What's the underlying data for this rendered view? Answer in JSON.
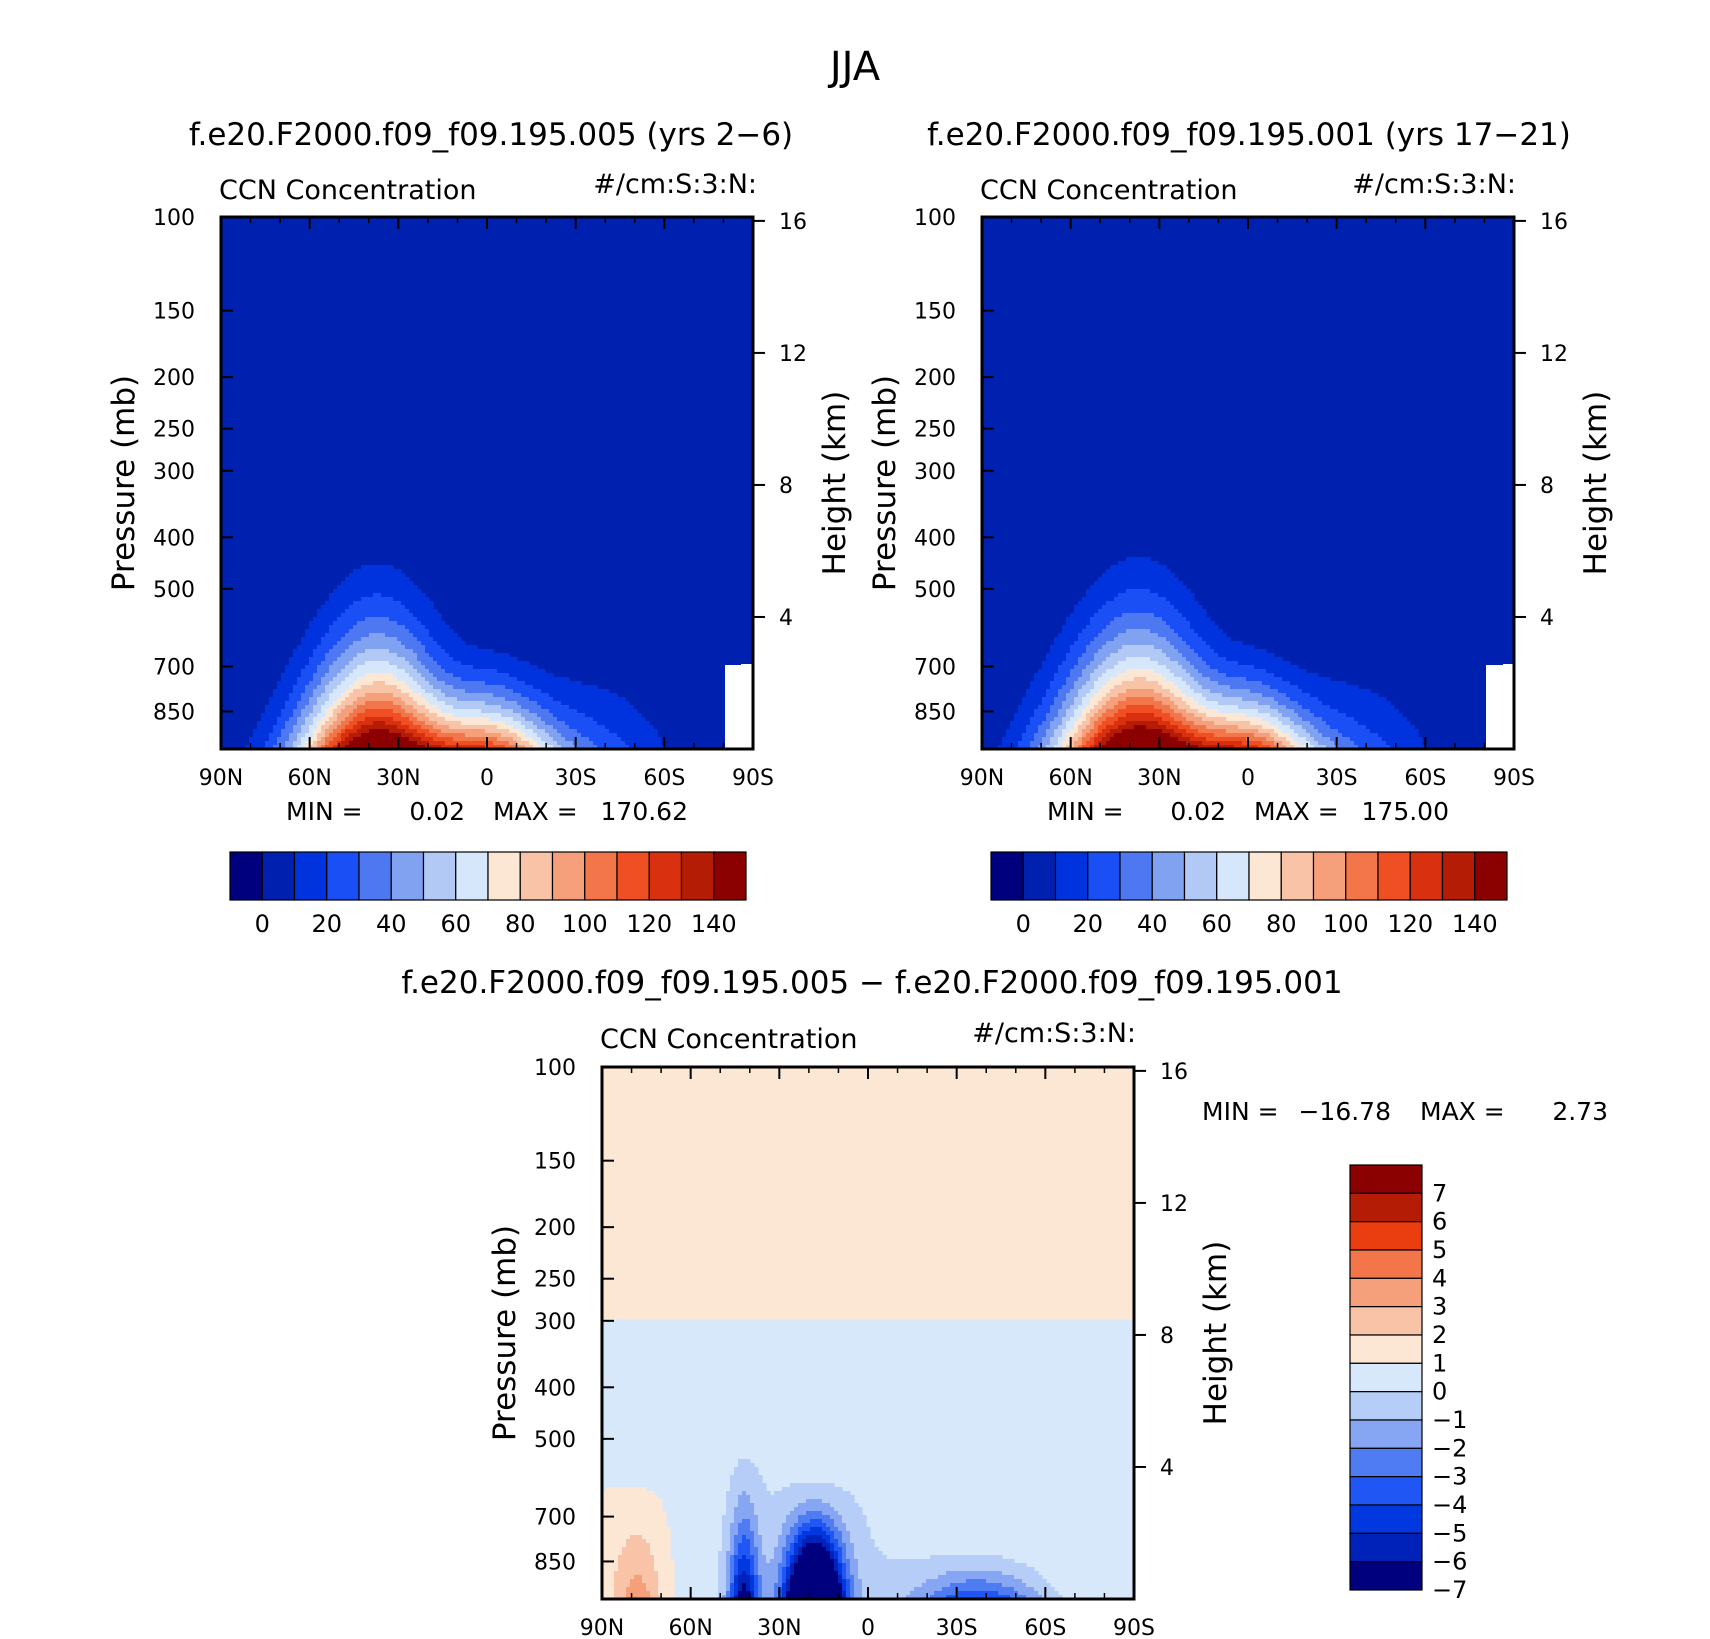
{
  "figure": {
    "title": "JJA"
  },
  "colors": {
    "abs": [
      "#00007f",
      "#0020b0",
      "#0033dd",
      "#1a4ff5",
      "#4d78f2",
      "#80a2f0",
      "#b3c9f5",
      "#d6e6fb",
      "#fce6d4",
      "#f9c3a8",
      "#f5a07a",
      "#f3764b",
      "#f04f24",
      "#d93010",
      "#b51c05",
      "#8b0000"
    ],
    "diff": [
      "#00007f",
      "#0022b8",
      "#0038e0",
      "#1f56f4",
      "#4f7cf2",
      "#86a6f3",
      "#b6cdf7",
      "#d7e8fb",
      "#fce6d4",
      "#f9c3a8",
      "#f5a07a",
      "#f3764b",
      "#ea3d10",
      "#b51c05",
      "#8b0000"
    ]
  },
  "chart_data": [
    {
      "type": "contour",
      "title": "f.e20.F2000.f09_f09.195.005 (yrs 2−6)",
      "variable": "CCN Concentration",
      "units": "#/cm:S:3:N:",
      "xlabel": "",
      "ylabel": "Pressure (mb)",
      "y2label": "Height (km)",
      "x_ticks": [
        "90N",
        "60N",
        "30N",
        "0",
        "30S",
        "60S",
        "90S"
      ],
      "y_ticks": [
        100,
        150,
        200,
        250,
        300,
        400,
        500,
        700,
        850
      ],
      "y_range": [
        100,
        1000
      ],
      "y2_ticks": [
        16,
        12,
        8,
        4
      ],
      "stats": {
        "min_label": "MIN =",
        "min": "0.02",
        "max_label": "MAX =",
        "max": "170.62"
      },
      "levels": [
        0,
        10,
        20,
        30,
        40,
        50,
        60,
        70,
        80,
        90,
        100,
        110,
        120,
        130,
        140
      ],
      "colorbar_labels": [
        "0",
        "20",
        "40",
        "60",
        "80",
        "100",
        "120",
        "140"
      ],
      "field_max": 170.62,
      "features": {
        "main_peak": {
          "lat": 37,
          "top_hpa": 255,
          "hw": 19,
          "max": 170.62
        },
        "secondary_peak": {
          "lat": -2,
          "top_hpa": 485,
          "hw": 12,
          "max": 90
        }
      },
      "missing_region": {
        "lat_from": -80,
        "surface_hpa": 690
      }
    },
    {
      "type": "contour",
      "title": "f.e20.F2000.f09_f09.195.001 (yrs 17−21)",
      "variable": "CCN Concentration",
      "units": "#/cm:S:3:N:",
      "xlabel": "",
      "ylabel": "Pressure (mb)",
      "y2label": "Height (km)",
      "x_ticks": [
        "90N",
        "60N",
        "30N",
        "0",
        "30S",
        "60S",
        "90S"
      ],
      "y_ticks": [
        100,
        150,
        200,
        250,
        300,
        400,
        500,
        700,
        850
      ],
      "y_range": [
        100,
        1000
      ],
      "y2_ticks": [
        16,
        12,
        8,
        4
      ],
      "stats": {
        "min_label": "MIN =",
        "min": "0.02",
        "max_label": "MAX =",
        "max": "175.00"
      },
      "levels": [
        0,
        10,
        20,
        30,
        40,
        50,
        60,
        70,
        80,
        90,
        100,
        110,
        120,
        130,
        140
      ],
      "colorbar_labels": [
        "0",
        "20",
        "40",
        "60",
        "80",
        "100",
        "120",
        "140"
      ],
      "field_max": 175.0,
      "features": {
        "main_peak": {
          "lat": 37,
          "top_hpa": 245,
          "hw": 20,
          "max": 175.0
        },
        "secondary_peak": {
          "lat": -2,
          "top_hpa": 480,
          "hw": 12,
          "max": 90
        }
      },
      "missing_region": {
        "lat_from": -80,
        "surface_hpa": 690
      }
    },
    {
      "type": "contour",
      "title": "f.e20.F2000.f09_f09.195.005 − f.e20.F2000.f09_f09.195.001",
      "variable": "CCN Concentration",
      "units": "#/cm:S:3:N:",
      "xlabel": "",
      "ylabel": "Pressure (mb)",
      "y2label": "Height (km)",
      "x_ticks": [
        "90N",
        "60N",
        "30N",
        "0",
        "30S",
        "60S",
        "90S"
      ],
      "y_ticks": [
        100,
        150,
        200,
        250,
        300,
        400,
        500,
        700,
        850
      ],
      "y_range": [
        100,
        1000
      ],
      "y2_ticks": [
        16,
        12,
        8,
        4
      ],
      "stats": {
        "min_label": "MIN =",
        "min": "−16.78",
        "max_label": "MAX =",
        "max": "2.73"
      },
      "levels": [
        -7,
        -6,
        -5,
        -4,
        -3,
        -2,
        -1,
        0,
        1,
        2,
        3,
        4,
        5,
        6,
        7
      ],
      "colorbar_labels": [
        "7",
        "6",
        "5",
        "4",
        "3",
        "2",
        "1",
        "0",
        "−1",
        "−2",
        "−3",
        "−4",
        "−5",
        "−6",
        "−7"
      ],
      "field_min": -16.78,
      "field_max": 2.73,
      "features": {
        "negative_core": {
          "lat": 18,
          "top_hpa": 660,
          "min": -16.78
        },
        "positive_region": {
          "lat_from": 90,
          "lat_to": 62,
          "max": 2.73
        }
      }
    }
  ]
}
